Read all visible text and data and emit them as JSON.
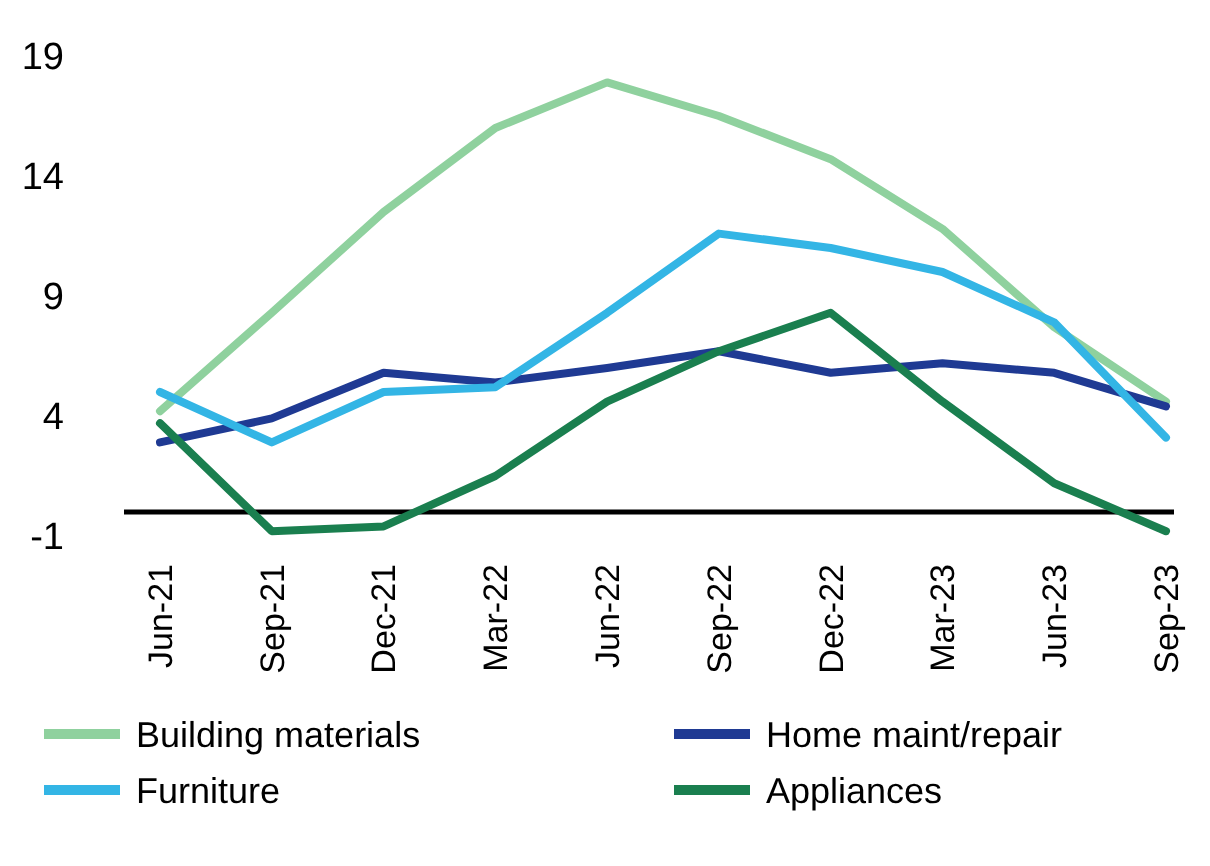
{
  "chart_data": {
    "type": "line",
    "categories": [
      "Jun-21",
      "Sep-21",
      "Dec-21",
      "Mar-22",
      "Jun-22",
      "Sep-22",
      "Dec-22",
      "Mar-23",
      "Jun-23",
      "Sep-23"
    ],
    "series": [
      {
        "name": "Building materials",
        "color": "#8fd19e",
        "values": [
          4.2,
          8.3,
          12.5,
          16,
          17.9,
          16.5,
          14.7,
          11.8,
          7.7,
          4.6
        ]
      },
      {
        "name": "Home maint/repair",
        "color": "#1f3a93",
        "values": [
          2.9,
          3.9,
          5.8,
          5.4,
          6,
          6.7,
          5.8,
          6.2,
          5.8,
          4.4
        ]
      },
      {
        "name": "Furniture",
        "color": "#33b5e5",
        "values": [
          5,
          2.9,
          5,
          5.2,
          8.3,
          11.6,
          11,
          10,
          7.9,
          3.1
        ]
      },
      {
        "name": "Appliances",
        "color": "#1a7f4f",
        "values": [
          3.7,
          -0.8,
          -0.6,
          1.5,
          4.6,
          6.7,
          8.3,
          4.6,
          1.2,
          -0.8
        ]
      }
    ],
    "ylim": [
      -1,
      19
    ],
    "yticks": [
      -1,
      4,
      9,
      14,
      19
    ],
    "legend": "bottom",
    "marker": "none",
    "line_style": "solid"
  }
}
